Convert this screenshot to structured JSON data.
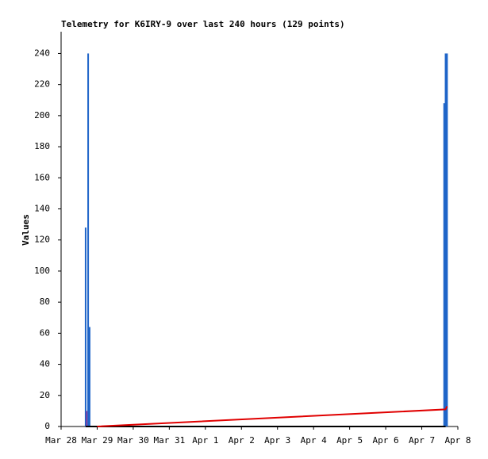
{
  "chart_data": {
    "type": "combo",
    "title": "Telemetry for K6IRY-9 over last 240 hours (129 points)",
    "y_label": "Values",
    "xlim": [
      0,
      11
    ],
    "xticks": [
      {
        "value": 0,
        "label": "Mar 28"
      },
      {
        "value": 1,
        "label": "Mar 29"
      },
      {
        "value": 2,
        "label": "Mar 30"
      },
      {
        "value": 3,
        "label": "Mar 31"
      },
      {
        "value": 4,
        "label": "Apr 1"
      },
      {
        "value": 5,
        "label": "Apr 2"
      },
      {
        "value": 6,
        "label": "Apr 3"
      },
      {
        "value": 7,
        "label": "Apr 4"
      },
      {
        "value": 8,
        "label": "Apr 5"
      },
      {
        "value": 9,
        "label": "Apr 6"
      },
      {
        "value": 10,
        "label": "Apr 7"
      },
      {
        "value": 11,
        "label": "Apr 8"
      }
    ],
    "ylim": [
      0,
      254
    ],
    "yticks": [
      0,
      20,
      40,
      60,
      80,
      100,
      120,
      140,
      160,
      180,
      200,
      220,
      240
    ],
    "series": [
      {
        "type": "bar",
        "color": "#1e64c8",
        "x": [
          0.68,
          0.75,
          0.79,
          10.62,
          10.66,
          10.7
        ],
        "values": [
          128,
          240,
          64,
          208,
          240,
          240
        ]
      },
      {
        "type": "bar",
        "color": "#8040a0",
        "x": [
          0.71
        ],
        "values": [
          10
        ]
      },
      {
        "type": "line",
        "color": "#000000",
        "x": [
          0.68,
          10.66
        ],
        "values": [
          0,
          0
        ]
      },
      {
        "type": "line",
        "color": "#e00000",
        "x": [
          1.0,
          10.66,
          10.7
        ],
        "values": [
          0,
          11,
          13
        ]
      }
    ]
  }
}
